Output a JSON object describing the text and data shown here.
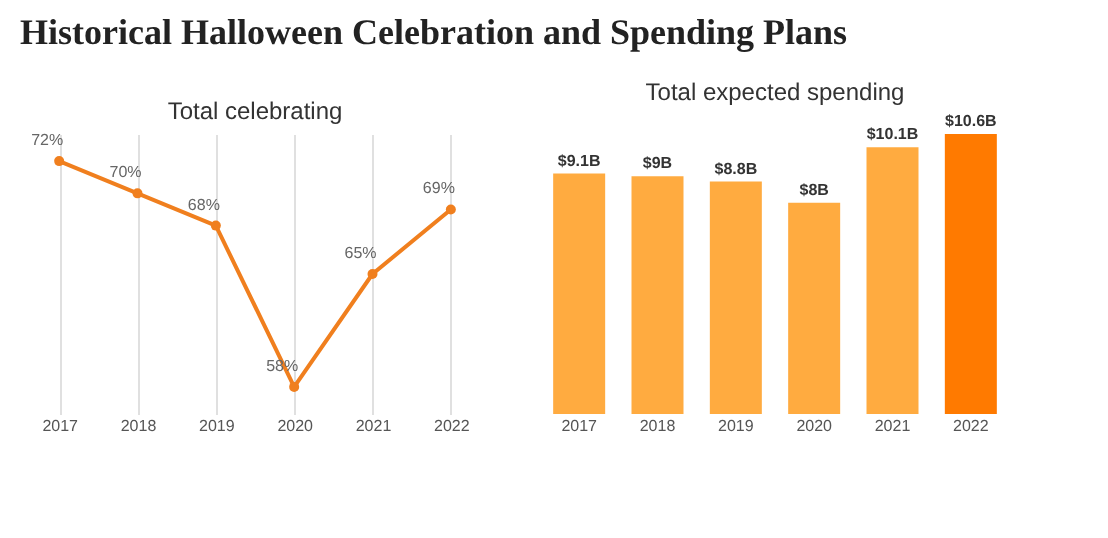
{
  "chart_data": [
    {
      "type": "line",
      "title": "Historical Halloween Celebration and Spending Plans",
      "subtitle": "Total celebrating",
      "categories": [
        "2017",
        "2018",
        "2019",
        "2020",
        "2021",
        "2022"
      ],
      "series": [
        {
          "color": "#f07f1e",
          "values": [
            72,
            70,
            68,
            58,
            65,
            69
          ],
          "value_labels": [
            "72%",
            "70%",
            "68%",
            "58%",
            "65%",
            "69%"
          ]
        }
      ],
      "marker": "circle",
      "line_style": "solid",
      "grid": "x",
      "tick_labels": "x"
    },
    {
      "type": "bar",
      "subtitle": "Total expected spending",
      "categories": [
        "2017",
        "2018",
        "2019",
        "2020",
        "2021",
        "2022"
      ],
      "values": [
        9.1,
        9,
        8.8,
        8,
        10.1,
        10.6
      ],
      "colors": [
        "#ffab40",
        "#ffab40",
        "#ffab40",
        "#ffab40",
        "#ffab40",
        "#ff7a00"
      ],
      "value_labels": [
        "$9.1B",
        "$9B",
        "$8.8B",
        "$8B",
        "$10.1B",
        "$10.6B"
      ],
      "tick_labels": "x"
    }
  ]
}
